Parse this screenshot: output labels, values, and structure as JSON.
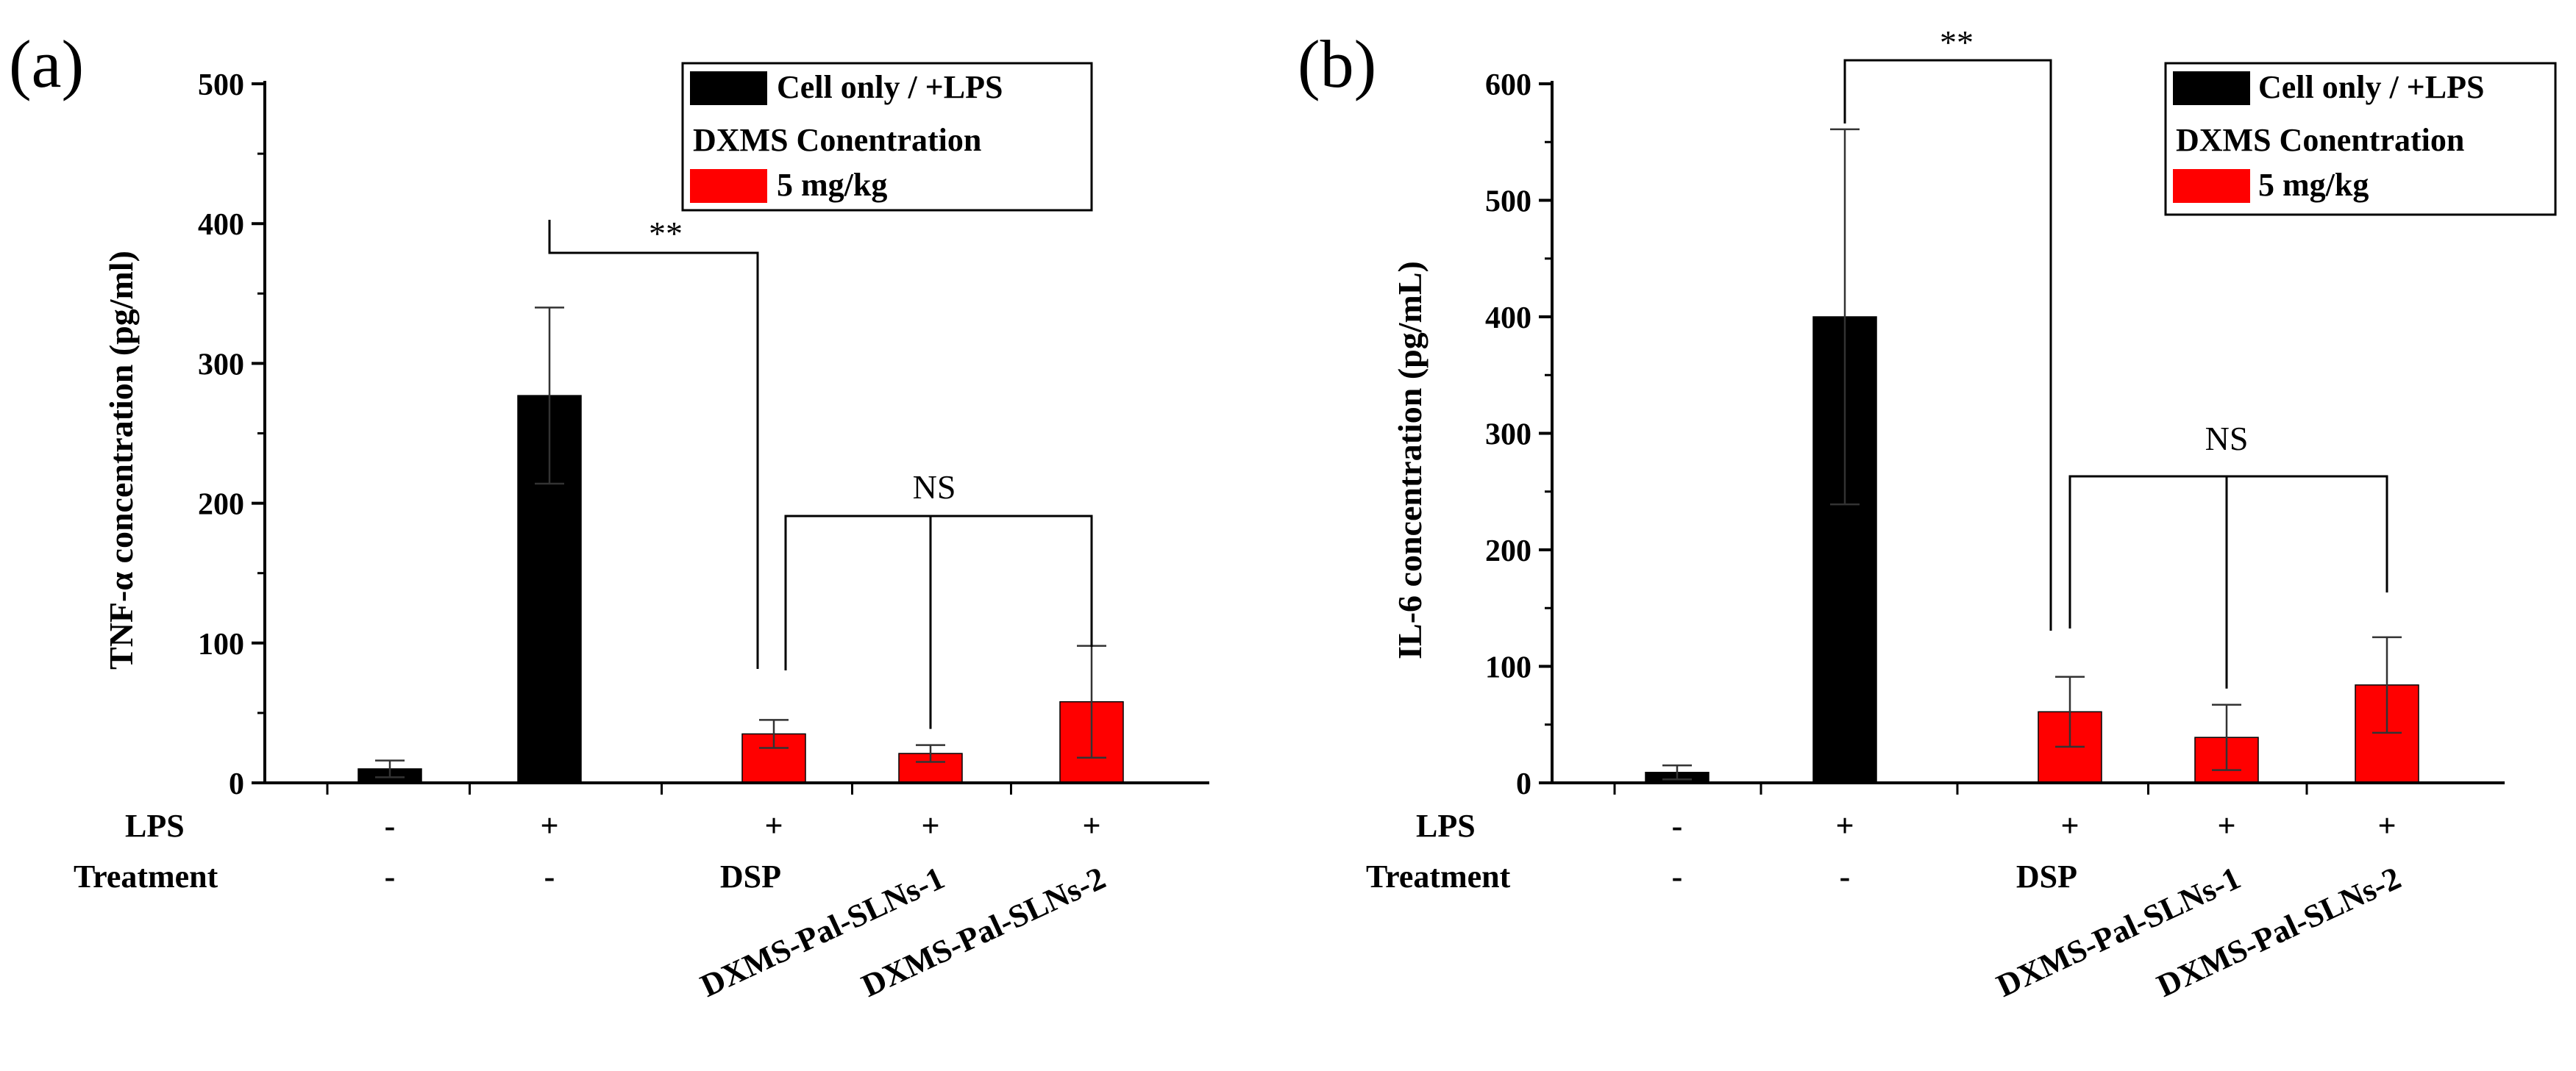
{
  "chart_data": [
    {
      "type": "bar",
      "panel": "(a)",
      "ylabel": "TNF-α concentration (pg/ml)",
      "ylim": [
        0,
        500
      ],
      "yticks": [
        0,
        100,
        200,
        300,
        400,
        500
      ],
      "categories": [
        "Cell only",
        "LPS",
        "DSP",
        "DXMS-Pal-SLNs-1",
        "DXMS-Pal-SLNs-2"
      ],
      "values": [
        10,
        277,
        35,
        21,
        58
      ],
      "errors": [
        6,
        63,
        10,
        6,
        40
      ],
      "colors": [
        "#000000",
        "#000000",
        "#ff0000",
        "#ff0000",
        "#ff0000"
      ],
      "rows": {
        "lps_label": "LPS",
        "treatment_label": "Treatment",
        "lps": [
          "-",
          "+",
          "+",
          "+",
          "+"
        ],
        "treatment": [
          "-",
          "-",
          "DSP",
          "DXMS-Pal-SLNs-1",
          "DXMS-Pal-SLNs-2"
        ]
      },
      "legend": {
        "entry1": "Cell only / +LPS",
        "heading": "DXMS Conentration",
        "entry2": "5 mg/kg",
        "color1": "#000000",
        "color2": "#ff0000"
      },
      "significance": [
        {
          "label": "**",
          "from": 1,
          "to": 2
        },
        {
          "label": "NS",
          "from": 2,
          "to": 4
        }
      ]
    },
    {
      "type": "bar",
      "panel": "(b)",
      "ylabel": "IL-6 concentration (pg/mL)",
      "ylim": [
        0,
        600
      ],
      "yticks": [
        0,
        100,
        200,
        300,
        400,
        500,
        600
      ],
      "categories": [
        "Cell only",
        "LPS",
        "DSP",
        "DXMS-Pal-SLNs-1",
        "DXMS-Pal-SLNs-2"
      ],
      "values": [
        9,
        400,
        61,
        39,
        84
      ],
      "errors": [
        6,
        161,
        30,
        28,
        41
      ],
      "colors": [
        "#000000",
        "#000000",
        "#ff0000",
        "#ff0000",
        "#ff0000"
      ],
      "rows": {
        "lps_label": "LPS",
        "treatment_label": "Treatment",
        "lps": [
          "-",
          "+",
          "+",
          "+",
          "+"
        ],
        "treatment": [
          "-",
          "-",
          "DSP",
          "DXMS-Pal-SLNs-1",
          "DXMS-Pal-SLNs-2"
        ]
      },
      "legend": {
        "entry1": "Cell only / +LPS",
        "heading": "DXMS Conentration",
        "entry2": "5 mg/kg",
        "color1": "#000000",
        "color2": "#ff0000"
      },
      "significance": [
        {
          "label": "**",
          "from": 1,
          "to": 2
        },
        {
          "label": "NS",
          "from": 2,
          "to": 4
        }
      ]
    }
  ]
}
